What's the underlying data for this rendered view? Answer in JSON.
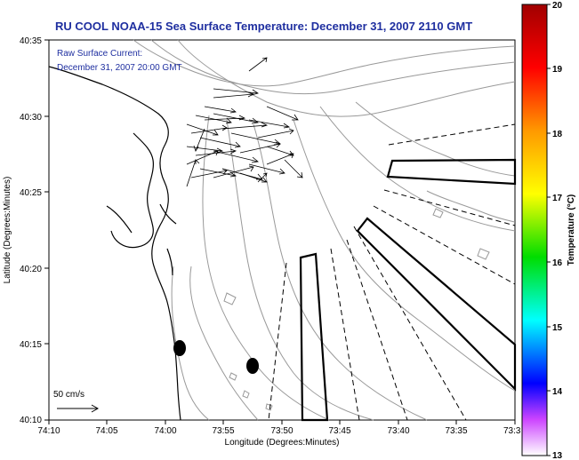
{
  "title": "RU COOL  NOAA-15  Sea Surface Temperature:  December 31, 2007 2110 GMT",
  "current_note": {
    "line1": "Raw Surface Current:",
    "line2": "December 31, 2007 20:00 GMT"
  },
  "scale": {
    "label": "50 cm/s"
  },
  "axes": {
    "xlabel": "Longitude (Degrees:Minutes)",
    "ylabel": "Latitude (Degrees:Minutes)",
    "x_ticks": [
      "74:10",
      "74:05",
      "74:00",
      "73:55",
      "73:50",
      "73:45",
      "73:40",
      "73:35",
      "73:3"
    ],
    "y_ticks": [
      "40:35",
      "40:30",
      "40:25",
      "40:20",
      "40:15",
      "40:10"
    ]
  },
  "colorbar": {
    "label": "Temperature (°C)",
    "ticks": [
      "20",
      "19",
      "18",
      "17",
      "16",
      "15",
      "14",
      "13"
    ],
    "colors": [
      "#b00000",
      "#ff0000",
      "#ff9900",
      "#ffff00",
      "#00dd00",
      "#00ffff",
      "#0000ff",
      "#ff66ff"
    ]
  },
  "map_colors": {
    "coastline": "#000000",
    "bathymetry": "#999999",
    "title_text": "#1f2fa0"
  }
}
